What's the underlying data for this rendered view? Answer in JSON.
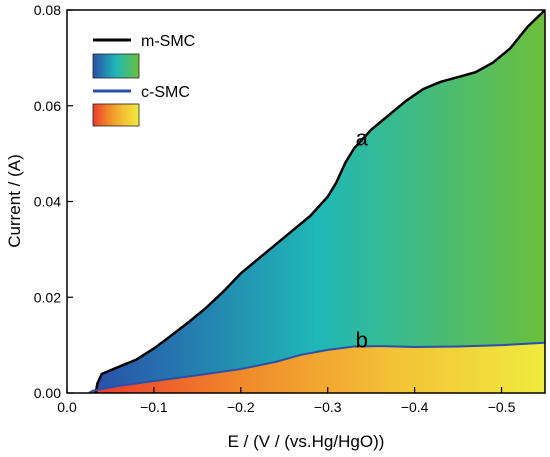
{
  "chart_data": {
    "type": "area",
    "xlabel": "E / (V / (vs.Hg/HgO))",
    "ylabel": "Current / (A)",
    "xlim": [
      0.0,
      -0.55
    ],
    "ylim": [
      0.0,
      0.08
    ],
    "x_ticks": [
      "0.0",
      "−0.1",
      "−0.2",
      "−0.3",
      "−0.4",
      "−0.5"
    ],
    "x_tick_values": [
      0.0,
      -0.1,
      -0.2,
      -0.3,
      -0.4,
      -0.5
    ],
    "y_ticks": [
      "0.00",
      "0.02",
      "0.04",
      "0.06",
      "0.08"
    ],
    "y_tick_values": [
      0.0,
      0.02,
      0.04,
      0.06,
      0.08
    ],
    "grid": false,
    "legend_position": "top-left",
    "series": [
      {
        "name": "m-SMC",
        "line_color": "#000000",
        "fill_gradient": [
          "#2a4fa8",
          "#1fb8b8",
          "#6cbf3c"
        ],
        "annotation": "a",
        "annotation_at": [
          -0.33,
          0.053
        ],
        "x": [
          -0.033,
          -0.035,
          -0.04,
          -0.06,
          -0.08,
          -0.1,
          -0.12,
          -0.14,
          -0.16,
          -0.18,
          -0.2,
          -0.22,
          -0.24,
          -0.26,
          -0.28,
          -0.3,
          -0.31,
          -0.32,
          -0.33,
          -0.34,
          -0.35,
          -0.37,
          -0.39,
          -0.41,
          -0.43,
          -0.45,
          -0.47,
          -0.49,
          -0.51,
          -0.53,
          -0.55
        ],
        "y": [
          0.0,
          0.002,
          0.004,
          0.0055,
          0.007,
          0.0093,
          0.012,
          0.0148,
          0.0178,
          0.0212,
          0.025,
          0.028,
          0.031,
          0.034,
          0.037,
          0.041,
          0.044,
          0.048,
          0.051,
          0.053,
          0.055,
          0.058,
          0.061,
          0.0635,
          0.065,
          0.066,
          0.067,
          0.069,
          0.072,
          0.0765,
          0.08
        ]
      },
      {
        "name": "c-SMC",
        "line_color": "#2a4fa8",
        "fill_gradient": [
          "#ee3a2e",
          "#f08a2a",
          "#f3c236",
          "#efeb3e"
        ],
        "annotation": "b",
        "annotation_at": [
          -0.33,
          0.0108
        ],
        "x": [
          -0.025,
          -0.03,
          -0.06,
          -0.1,
          -0.15,
          -0.2,
          -0.24,
          -0.27,
          -0.3,
          -0.33,
          -0.36,
          -0.4,
          -0.45,
          -0.5,
          -0.55
        ],
        "y": [
          0.0,
          0.0005,
          0.0015,
          0.0025,
          0.0037,
          0.005,
          0.0065,
          0.008,
          0.009,
          0.0097,
          0.0098,
          0.0096,
          0.0097,
          0.01,
          0.0105
        ]
      }
    ]
  }
}
